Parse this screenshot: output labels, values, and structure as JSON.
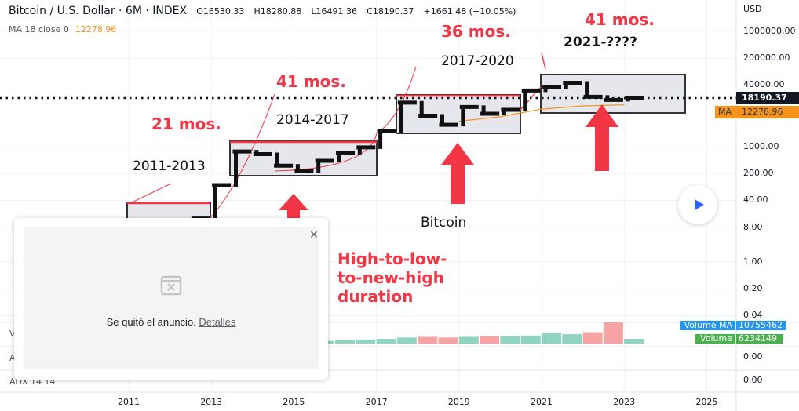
{
  "header": {
    "symbol_title": "Bitcoin / U.S. Dollar · 6M · INDEX",
    "open": "O16530.33",
    "high": "H18280.88",
    "low": "L16491.36",
    "close": "C18190.37",
    "change": "+1661.48 (+10.05%)",
    "ma_label": "MA 18 close 0",
    "ma_value": "12278.96"
  },
  "price_axis": {
    "currency": "USD",
    "labels": [
      "1000000.00",
      "200000.00",
      "40000.00",
      "1000.00",
      "200.00",
      "40.00",
      "8.00",
      "1.00",
      "0.20",
      "0.04"
    ],
    "last_price": "18190.37",
    "ma_tag": "MA",
    "ma_price": "12278.96"
  },
  "time_axis": [
    "2011",
    "2013",
    "2015",
    "2017",
    "2019",
    "2021",
    "2023",
    "2025"
  ],
  "annotations": {
    "cycle1": "2011-2013",
    "cycle2": "2014-2017",
    "cycle3": "2017-2020",
    "cycle4": "2021-????",
    "dur1": "21 mos.",
    "dur2": "41 mos.",
    "dur3": "36 mos.",
    "dur4": "41 mos.",
    "asset": "Bitcoin",
    "note": "High-to-low-\nto-new-high\nduration"
  },
  "panes": {
    "volume_label": "V",
    "volume_ma_label": "Volume MA",
    "volume_ma_value": "10755462",
    "volume_label_full": "Volume",
    "volume_value": "6234149",
    "pane2_label": "A",
    "pane2_value": "0.00",
    "adx_label": "ADX 14 14",
    "adx_value": "0.00"
  },
  "ad_popup": {
    "message": "Se quitó el anuncio.",
    "details_link": "Detalles",
    "close": "✕"
  },
  "colors": {
    "up": "#26a69a",
    "down": "#ef5350",
    "ma": "#f7931a",
    "annotation": "#f23645",
    "accent": "#2962ff"
  },
  "chart_data": {
    "type": "ohlc",
    "scale": "log",
    "candles": [
      [
        2010.5,
        0.06,
        30,
        0.01,
        5
      ],
      [
        2011.0,
        5,
        31,
        2,
        4.7
      ],
      [
        2011.5,
        4.7,
        6,
        2,
        5.3
      ],
      [
        2012.0,
        5.3,
        7,
        4,
        6.7
      ],
      [
        2012.5,
        6.7,
        16,
        6,
        13.5
      ],
      [
        2013.0,
        13.5,
        266,
        13,
        100
      ],
      [
        2013.5,
        100,
        1150,
        65,
        750
      ],
      [
        2014.0,
        750,
        1000,
        350,
        640
      ],
      [
        2014.5,
        640,
        650,
        300,
        320
      ],
      [
        2015.0,
        320,
        320,
        160,
        230
      ],
      [
        2015.5,
        230,
        500,
        200,
        430
      ],
      [
        2016.0,
        430,
        780,
        360,
        670
      ],
      [
        2016.5,
        670,
        980,
        470,
        960
      ],
      [
        2017.0,
        960,
        2900,
        880,
        2500
      ],
      [
        2017.5,
        2500,
        19800,
        1800,
        14000
      ],
      [
        2018.0,
        14000,
        17200,
        5800,
        6400
      ],
      [
        2018.5,
        6400,
        8500,
        3100,
        3700
      ],
      [
        2019.0,
        3700,
        13800,
        3300,
        10800
      ],
      [
        2019.5,
        10800,
        12300,
        6400,
        7200
      ],
      [
        2020.0,
        7200,
        10500,
        3800,
        9100
      ],
      [
        2020.5,
        9100,
        29000,
        9000,
        29000
      ],
      [
        2021.0,
        29000,
        64800,
        28700,
        35000
      ],
      [
        2021.5,
        35000,
        69000,
        28800,
        46000
      ],
      [
        2022.0,
        46000,
        48200,
        17600,
        19900
      ],
      [
        2022.5,
        19900,
        25200,
        15500,
        16500
      ],
      [
        2023.0,
        16500,
        18280,
        16490,
        18190
      ]
    ],
    "ma": [
      [
        2019.0,
        4600
      ],
      [
        2020.0,
        6000
      ],
      [
        2021.0,
        9500
      ],
      [
        2022.0,
        11500
      ],
      [
        2023.0,
        12279
      ]
    ],
    "volume": [
      [
        2014.5,
        0.1
      ],
      [
        2015,
        0.15
      ],
      [
        2015.5,
        0.2
      ],
      [
        2016,
        0.25
      ],
      [
        2016.5,
        0.3
      ],
      [
        2017,
        0.35
      ],
      [
        2017.5,
        0.45
      ],
      [
        2018,
        0.5
      ],
      [
        2018.5,
        0.45
      ],
      [
        2019,
        0.5
      ],
      [
        2019.5,
        0.55
      ],
      [
        2020,
        0.55
      ],
      [
        2020.5,
        0.6
      ],
      [
        2021,
        0.8
      ],
      [
        2021.5,
        0.7
      ],
      [
        2022,
        0.85
      ],
      [
        2022.5,
        1.6
      ],
      [
        2023,
        0.35
      ]
    ]
  }
}
